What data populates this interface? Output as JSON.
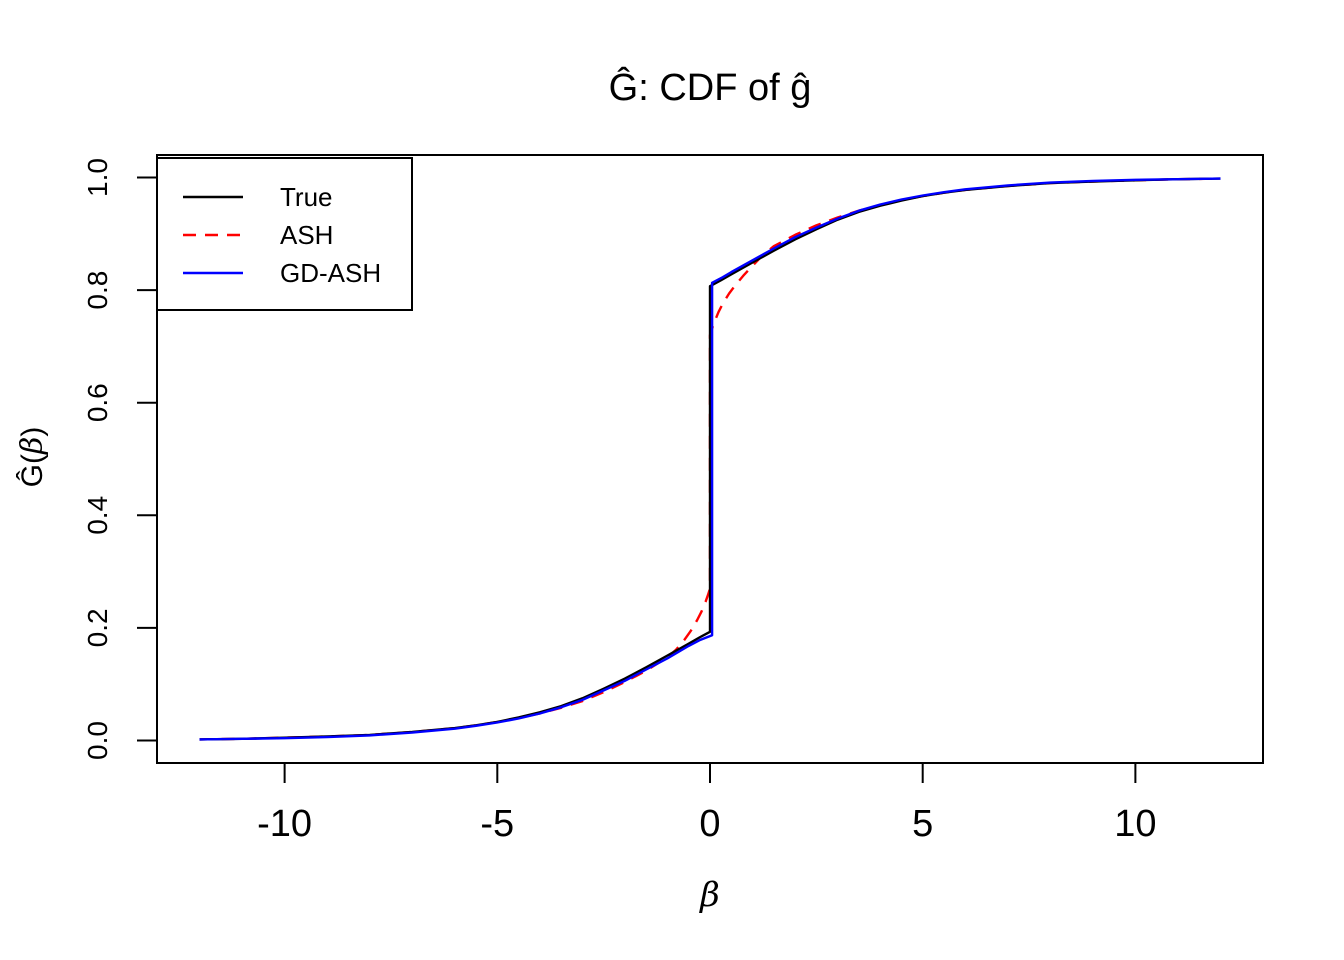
{
  "title": "Ĝ: CDF of ĝ",
  "axes": {
    "x": {
      "label": "β",
      "tick_labels": [
        "-10",
        "-5",
        "0",
        "5",
        "10"
      ],
      "tick_values": [
        -10,
        -5,
        0,
        5,
        10
      ]
    },
    "y": {
      "label_prefix": "Ĝ(",
      "label_beta": "β",
      "label_suffix": ")",
      "tick_labels": [
        "0.0",
        "0.2",
        "0.4",
        "0.6",
        "0.8",
        "1.0"
      ],
      "tick_values": [
        0,
        0.2,
        0.4,
        0.6,
        0.8,
        1.0
      ]
    }
  },
  "legend": {
    "items": [
      {
        "label": "True",
        "color": "#000000",
        "style": "solid"
      },
      {
        "label": "ASH",
        "color": "#FF0000",
        "style": "dashed"
      },
      {
        "label": "GD-ASH",
        "color": "#0000FF",
        "style": "solid"
      }
    ]
  },
  "chart_data": {
    "type": "line",
    "title": "Ĝ: CDF of ĝ",
    "xlabel": "β",
    "ylabel": "Ĝ(β)",
    "xlim": [
      -13,
      13
    ],
    "ylim": [
      -0.04,
      1.04
    ],
    "grid": false,
    "legend_position": "top-left",
    "description": "CDFs with a point mass at zero: jump from ~0.19 to ~0.81 at beta=0",
    "series": [
      {
        "name": "True",
        "color": "#000000",
        "style": "solid",
        "z": 2,
        "points": [
          [
            -12,
            0.002
          ],
          [
            -11,
            0.003
          ],
          [
            -10,
            0.005
          ],
          [
            -9,
            0.007
          ],
          [
            -8,
            0.01
          ],
          [
            -7,
            0.015
          ],
          [
            -6,
            0.022
          ],
          [
            -5.5,
            0.027
          ],
          [
            -5,
            0.033
          ],
          [
            -4.5,
            0.041
          ],
          [
            -4,
            0.05
          ],
          [
            -3.5,
            0.061
          ],
          [
            -3,
            0.075
          ],
          [
            -2.5,
            0.092
          ],
          [
            -2,
            0.11
          ],
          [
            -1.5,
            0.13
          ],
          [
            -1,
            0.151
          ],
          [
            -0.5,
            0.172
          ],
          [
            -0.25,
            0.183
          ],
          [
            0,
            0.193
          ],
          [
            0,
            0.807
          ],
          [
            0.25,
            0.817
          ],
          [
            0.5,
            0.828
          ],
          [
            1,
            0.849
          ],
          [
            1.5,
            0.87
          ],
          [
            2,
            0.89
          ],
          [
            2.5,
            0.908
          ],
          [
            3,
            0.925
          ],
          [
            3.5,
            0.939
          ],
          [
            4,
            0.95
          ],
          [
            4.5,
            0.959
          ],
          [
            5,
            0.967
          ],
          [
            5.5,
            0.973
          ],
          [
            6,
            0.978
          ],
          [
            7,
            0.985
          ],
          [
            8,
            0.99
          ],
          [
            9,
            0.993
          ],
          [
            10,
            0.995
          ],
          [
            11,
            0.997
          ],
          [
            12,
            0.998
          ]
        ]
      },
      {
        "name": "ASH",
        "color": "#FF0000",
        "style": "dashed",
        "z": 1,
        "points": [
          [
            -12,
            0.002
          ],
          [
            -11,
            0.003
          ],
          [
            -10,
            0.005
          ],
          [
            -9,
            0.007
          ],
          [
            -8,
            0.01
          ],
          [
            -7,
            0.015
          ],
          [
            -6,
            0.022
          ],
          [
            -5.5,
            0.027
          ],
          [
            -5,
            0.033
          ],
          [
            -4.5,
            0.04
          ],
          [
            -4,
            0.048
          ],
          [
            -3.5,
            0.058
          ],
          [
            -3,
            0.07
          ],
          [
            -2.5,
            0.086
          ],
          [
            -2,
            0.104
          ],
          [
            -1.5,
            0.124
          ],
          [
            -1,
            0.148
          ],
          [
            -0.8,
            0.161
          ],
          [
            -0.6,
            0.179
          ],
          [
            -0.45,
            0.195
          ],
          [
            -0.3,
            0.214
          ],
          [
            -0.2,
            0.229
          ],
          [
            -0.1,
            0.247
          ],
          [
            -0.05,
            0.258
          ],
          [
            0,
            0.27
          ],
          [
            0,
            0.72
          ],
          [
            0.05,
            0.732
          ],
          [
            0.1,
            0.743
          ],
          [
            0.2,
            0.761
          ],
          [
            0.3,
            0.776
          ],
          [
            0.45,
            0.794
          ],
          [
            0.6,
            0.809
          ],
          [
            0.8,
            0.827
          ],
          [
            1,
            0.843
          ],
          [
            1.2,
            0.859
          ],
          [
            1.5,
            0.878
          ],
          [
            2,
            0.898
          ],
          [
            2.5,
            0.915
          ],
          [
            3,
            0.929
          ],
          [
            3.5,
            0.941
          ],
          [
            4,
            0.951
          ],
          [
            4.5,
            0.96
          ],
          [
            5,
            0.967
          ],
          [
            5.5,
            0.973
          ],
          [
            6,
            0.978
          ],
          [
            7,
            0.985
          ],
          [
            8,
            0.99
          ],
          [
            9,
            0.993
          ],
          [
            10,
            0.995
          ],
          [
            11,
            0.997
          ],
          [
            12,
            0.998
          ]
        ]
      },
      {
        "name": "GD-ASH",
        "color": "#0000FF",
        "style": "solid",
        "z": 3,
        "points": [
          [
            -12,
            0.002
          ],
          [
            -11,
            0.003
          ],
          [
            -10,
            0.004
          ],
          [
            -9,
            0.006
          ],
          [
            -8,
            0.009
          ],
          [
            -7,
            0.014
          ],
          [
            -6,
            0.021
          ],
          [
            -5.5,
            0.026
          ],
          [
            -5,
            0.032
          ],
          [
            -4.5,
            0.039
          ],
          [
            -4,
            0.048
          ],
          [
            -3.5,
            0.059
          ],
          [
            -3,
            0.072
          ],
          [
            -2.5,
            0.089
          ],
          [
            -2,
            0.106
          ],
          [
            -1.5,
            0.126
          ],
          [
            -1,
            0.146
          ],
          [
            -0.5,
            0.168
          ],
          [
            -0.25,
            0.178
          ],
          [
            0.05,
            0.187
          ],
          [
            0.05,
            0.813
          ],
          [
            0.3,
            0.823
          ],
          [
            0.5,
            0.832
          ],
          [
            1,
            0.853
          ],
          [
            1.5,
            0.874
          ],
          [
            2,
            0.894
          ],
          [
            2.5,
            0.911
          ],
          [
            3,
            0.927
          ],
          [
            3.5,
            0.941
          ],
          [
            4,
            0.952
          ],
          [
            4.5,
            0.961
          ],
          [
            5,
            0.968
          ],
          [
            5.5,
            0.974
          ],
          [
            6,
            0.979
          ],
          [
            7,
            0.986
          ],
          [
            8,
            0.991
          ],
          [
            9,
            0.994
          ],
          [
            10,
            0.996
          ],
          [
            11,
            0.997
          ],
          [
            12,
            0.998
          ]
        ]
      }
    ]
  }
}
